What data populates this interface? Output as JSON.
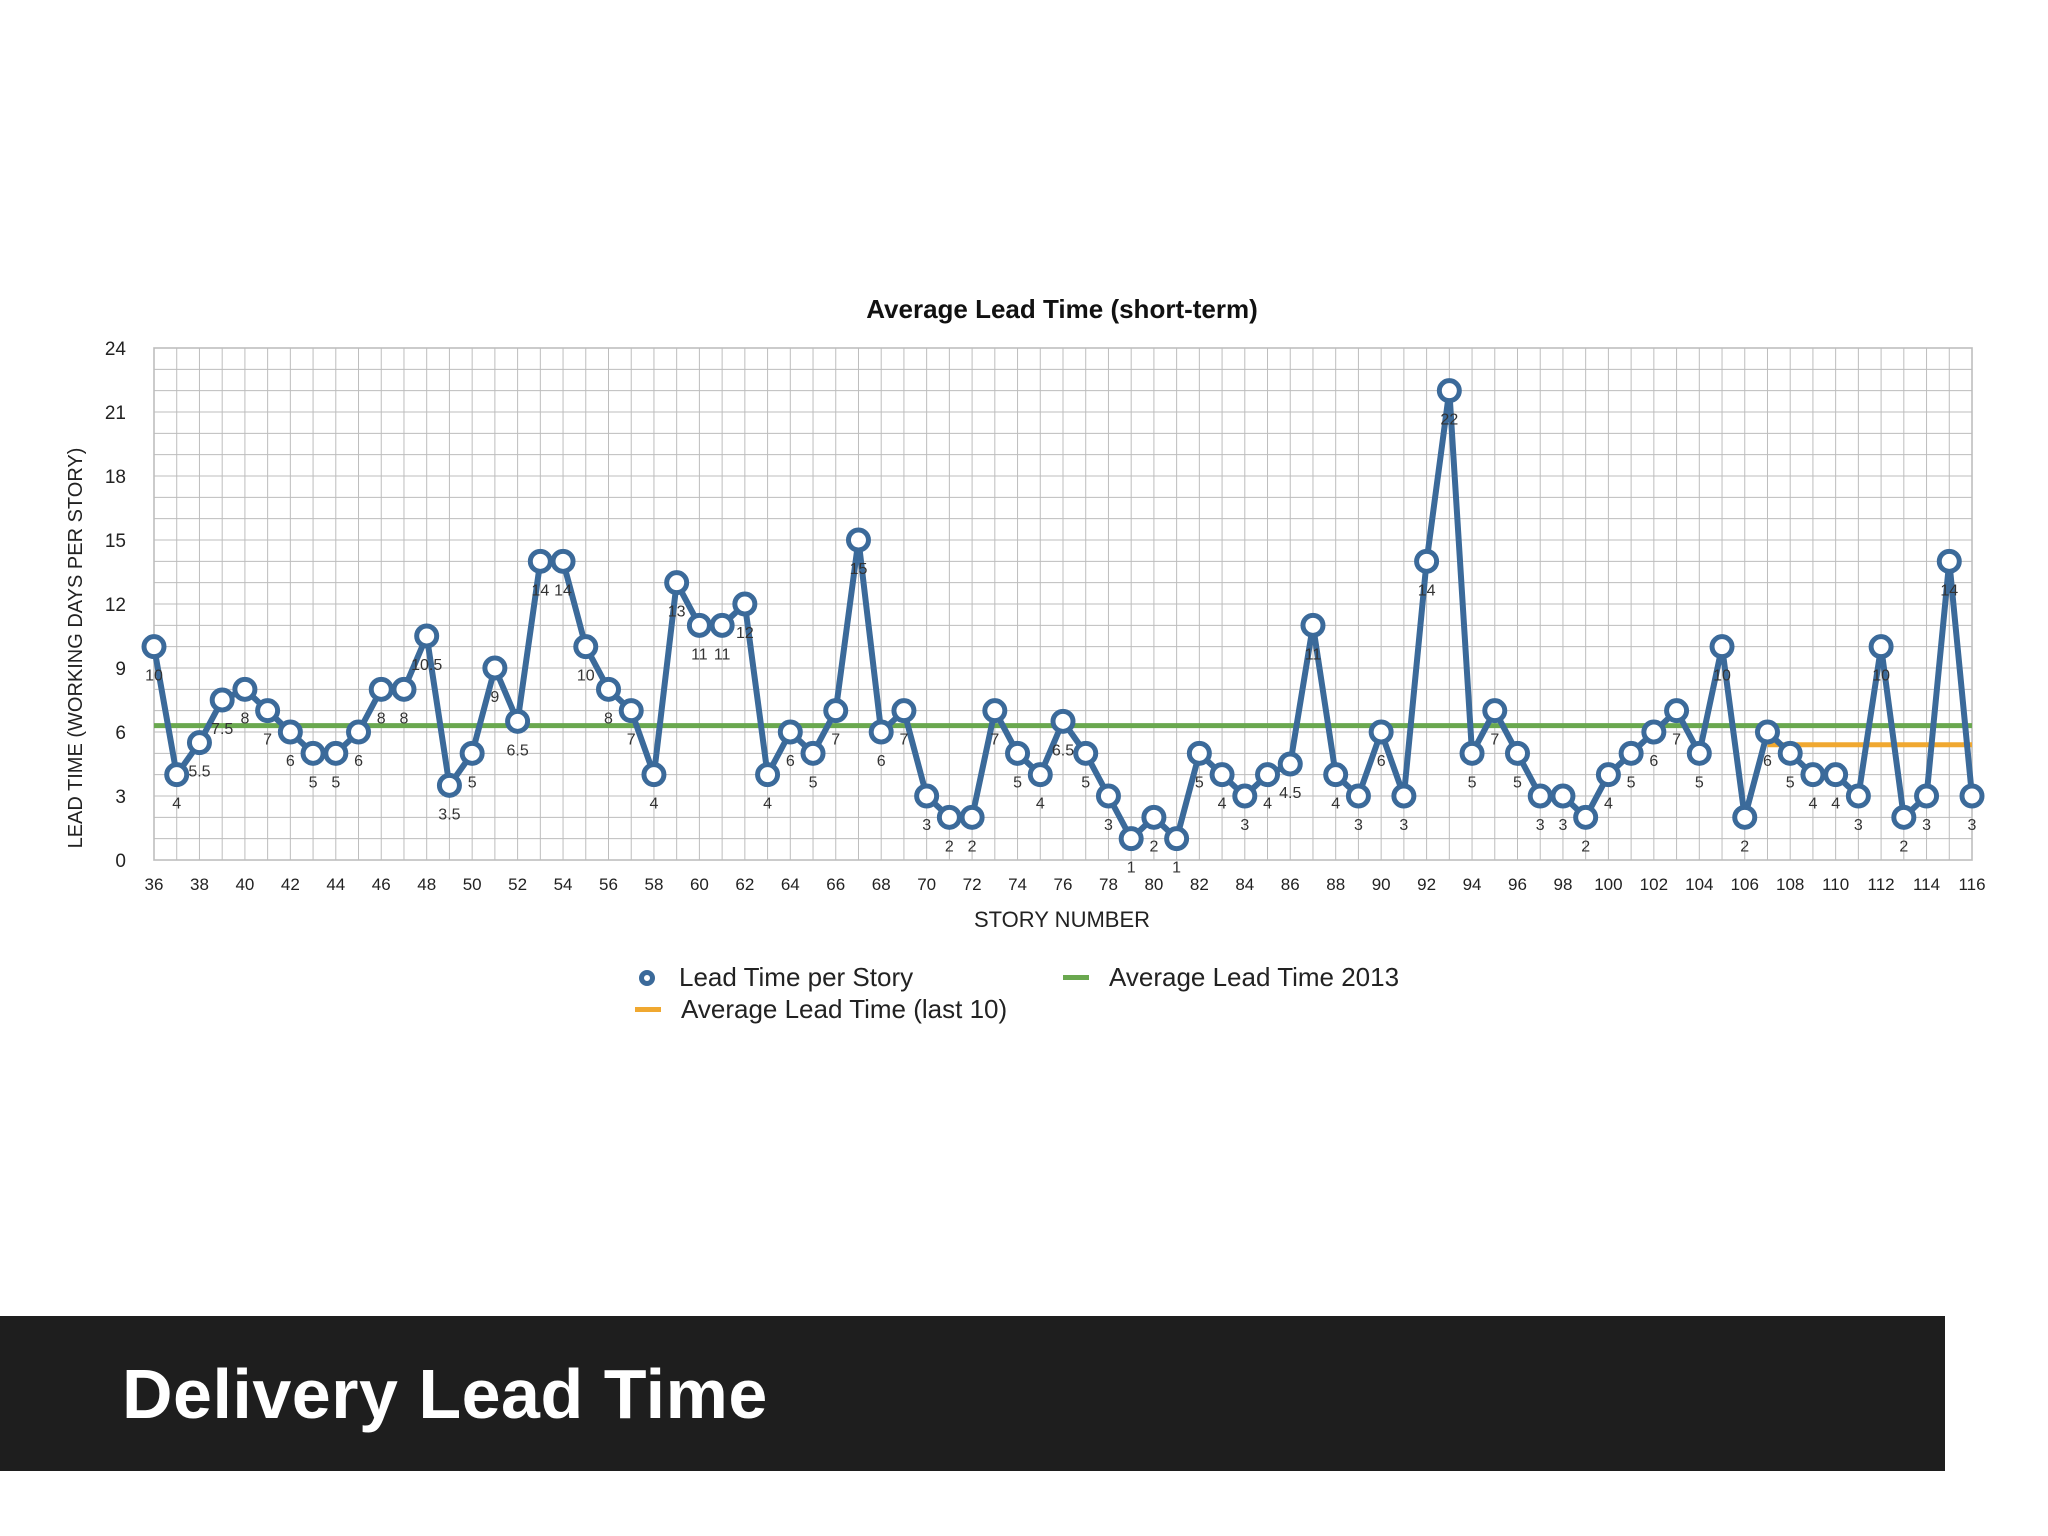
{
  "slide": {
    "title": "Delivery Lead Time"
  },
  "colors": {
    "series": "#3b6a9a",
    "avg2013": "#6aa84f",
    "avgLast10": "#f0a830",
    "grid": "#b4b4b4",
    "titleBar": "#1e1e1e"
  },
  "legend": {
    "items": [
      {
        "label": "Lead Time per Story",
        "icon": "circle-marker"
      },
      {
        "label": "Average Lead Time 2013",
        "icon": "line"
      },
      {
        "label": "Average Lead Time (last 10)",
        "icon": "line"
      }
    ]
  },
  "chart_data": {
    "type": "line",
    "title": "Average Lead Time (short-term)",
    "xlabel": "STORY NUMBER",
    "ylabel": "LEAD TIME (WORKING DAYS PER STORY)",
    "xlim": [
      36,
      116
    ],
    "ylim": [
      0,
      24
    ],
    "yticks": [
      0,
      3,
      6,
      9,
      12,
      15,
      18,
      21,
      24
    ],
    "xticks": [
      36,
      38,
      40,
      42,
      44,
      46,
      48,
      50,
      52,
      54,
      56,
      58,
      60,
      62,
      64,
      66,
      68,
      70,
      72,
      74,
      76,
      78,
      80,
      82,
      84,
      86,
      88,
      90,
      92,
      94,
      96,
      98,
      100,
      102,
      104,
      106,
      108,
      110,
      112,
      114,
      116
    ],
    "legend_position": "bottom",
    "grid": true,
    "series": [
      {
        "name": "Lead Time per Story",
        "x": [
          36,
          37,
          38,
          39,
          40,
          41,
          42,
          43,
          44,
          45,
          46,
          47,
          48,
          49,
          50,
          51,
          52,
          53,
          54,
          55,
          56,
          57,
          58,
          59,
          60,
          61,
          62,
          63,
          64,
          65,
          66,
          67,
          68,
          69,
          70,
          71,
          72,
          73,
          74,
          75,
          76,
          77,
          78,
          79,
          80,
          81,
          82,
          83,
          84,
          85,
          86,
          87,
          88,
          89,
          90,
          91,
          92,
          93,
          94,
          95,
          96,
          97,
          98,
          99,
          100,
          101,
          102,
          103,
          104,
          105,
          106,
          107,
          108,
          109,
          110,
          111,
          112,
          113,
          114,
          115,
          116
        ],
        "values": [
          10,
          4,
          5.5,
          7.5,
          8,
          7,
          6,
          5,
          5,
          6,
          8,
          8,
          10.5,
          3.5,
          5,
          9,
          6.5,
          14,
          14,
          10,
          8,
          7,
          4,
          13,
          11,
          11,
          12,
          4,
          6,
          5,
          7,
          15,
          6,
          7,
          3,
          2,
          2,
          7,
          5,
          4,
          6.5,
          5,
          3,
          1,
          2,
          1,
          5,
          4,
          3,
          4,
          4.5,
          11,
          4,
          3,
          6,
          3,
          14,
          22,
          5,
          7,
          5,
          3,
          3,
          2,
          4,
          5,
          6,
          7,
          5,
          10,
          2,
          6,
          5,
          4,
          4,
          3,
          10,
          2,
          3,
          14,
          3
        ],
        "data_labels": [
          "10",
          "4",
          "5.5",
          "7.5",
          "8",
          "7",
          "6",
          "5",
          "5",
          "6",
          "8",
          "8",
          "10.5",
          "3.5",
          "5",
          "9",
          "6.5",
          "14",
          "14",
          "10",
          "8",
          "7",
          "4",
          "13",
          "11",
          "11",
          "12",
          "4",
          "6",
          "5",
          "7",
          "15",
          "6",
          "7",
          "3",
          "2",
          "2",
          "7",
          "5",
          "4",
          "6.5",
          "5",
          "3",
          "1",
          "2",
          "1",
          "5",
          "4",
          "3",
          "4",
          "4.5",
          "11",
          "4",
          "3",
          "6",
          "3",
          "14",
          "22",
          "5",
          "7",
          "5",
          "3",
          "3",
          "2",
          "4",
          "5",
          "6",
          "7",
          "5",
          "10",
          "2",
          "6",
          "5",
          "4",
          "4",
          "3",
          "10",
          "2",
          "3",
          "14",
          "3"
        ]
      },
      {
        "name": "Average Lead Time 2013",
        "x": [
          36,
          116
        ],
        "values": [
          6.3,
          6.3
        ]
      },
      {
        "name": "Average Lead Time (last 10)",
        "x": [
          107,
          116
        ],
        "values": [
          5.4,
          5.4
        ]
      }
    ]
  }
}
